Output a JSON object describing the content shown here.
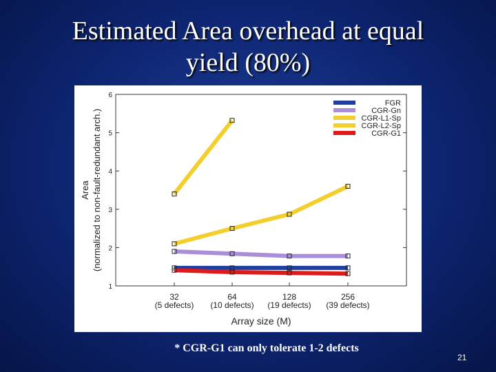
{
  "slide": {
    "title_line1": "Estimated Area overhead at equal",
    "title_line2": "yield (80%)",
    "footnote": "* CGR-G1 can only tolerate 1-2 defects",
    "page_number": "21"
  },
  "chart_data": {
    "type": "line",
    "title": "",
    "ylabel_line1": "Area",
    "ylabel_line2": "(normalized to non-fault-redundant arch.)",
    "xlabel": "Array size (M)",
    "categories": [
      "32",
      "64",
      "128",
      "256"
    ],
    "category_sublabels": [
      "(5 defects)",
      "(10 defects)",
      "(19 defects)",
      "(39 defects)"
    ],
    "yticks": [
      1,
      2,
      3,
      4,
      5,
      6
    ],
    "ylim": [
      1,
      6
    ],
    "legend_position": "top-right",
    "grid": false,
    "series": [
      {
        "name": "FGR",
        "color": "#1f3fa0",
        "values": [
          1.47,
          1.47,
          1.47,
          1.47
        ]
      },
      {
        "name": "CGR-Gn",
        "color": "#a98fd9",
        "values": [
          1.9,
          1.84,
          1.78,
          1.78
        ]
      },
      {
        "name": "CGR-L1-Sp",
        "color": "#f2cf2c",
        "values": [
          3.4,
          5.32,
          null,
          null
        ]
      },
      {
        "name": "CGR-L2-Sp",
        "color": "#f2cf2c",
        "values": [
          2.1,
          2.5,
          2.87,
          3.6
        ]
      },
      {
        "name": "CGR-G1",
        "color": "#e01a1a",
        "values": [
          1.41,
          1.36,
          1.34,
          1.32
        ]
      }
    ]
  }
}
